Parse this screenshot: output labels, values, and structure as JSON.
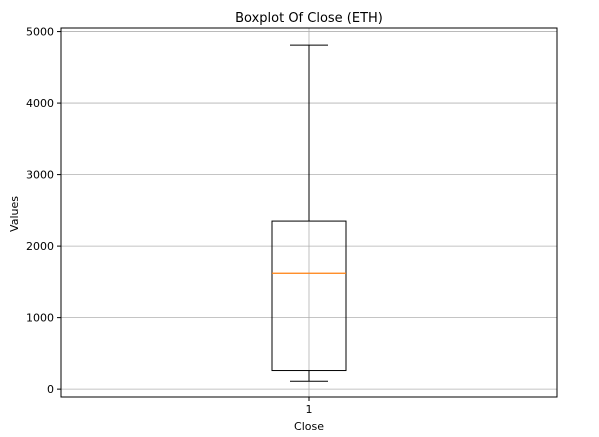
{
  "chart_data": {
    "type": "boxplot",
    "title": "Boxplot Of Close (ETH)",
    "xlabel": "Close",
    "ylabel": "Values",
    "categories": [
      "1"
    ],
    "yticks": [
      0,
      1000,
      2000,
      3000,
      4000,
      5000
    ],
    "ylim": [
      -110,
      5050
    ],
    "grid": true,
    "boxes": [
      {
        "label": "1",
        "whisker_low": 110,
        "q1": 260,
        "median": 1620,
        "q3": 2350,
        "whisker_high": 4810
      }
    ],
    "colors": {
      "box": "#000000",
      "median": "#ff7f0e",
      "grid": "#b0b0b0"
    }
  }
}
